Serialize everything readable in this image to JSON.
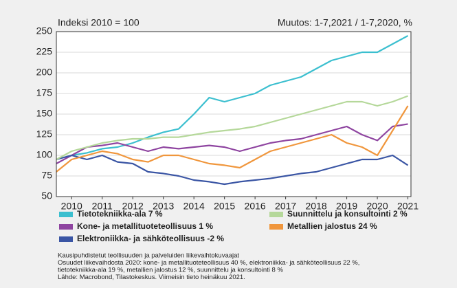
{
  "chart_data": {
    "type": "line",
    "subtitle_left": "Indeksi 2010 = 100",
    "subtitle_right": "Muutos: 1-7,2021 / 1-7,2020, %",
    "x": [
      2010.0,
      2010.5,
      2011.0,
      2011.5,
      2012.0,
      2012.5,
      2013.0,
      2013.5,
      2014.0,
      2014.5,
      2015.0,
      2015.5,
      2016.0,
      2016.5,
      2017.0,
      2017.5,
      2018.0,
      2018.5,
      2019.0,
      2019.5,
      2020.0,
      2020.5,
      2021.0,
      2021.5
    ],
    "series": [
      {
        "name": "Tietotekniikka-ala 7 %",
        "color": "#3bbfcf",
        "values": [
          95,
          100,
          103,
          108,
          110,
          115,
          122,
          128,
          132,
          150,
          170,
          165,
          170,
          175,
          185,
          190,
          195,
          205,
          215,
          220,
          225,
          225,
          235,
          245
        ]
      },
      {
        "name": "Kone- ja metallituoteteollisuus 1 %",
        "color": "#8e44a0",
        "values": [
          90,
          100,
          110,
          112,
          115,
          110,
          105,
          110,
          108,
          110,
          112,
          110,
          105,
          110,
          115,
          118,
          120,
          125,
          130,
          135,
          125,
          118,
          135,
          138
        ]
      },
      {
        "name": "Elektroniikka- ja sähköteollisuus -2 %",
        "color": "#3a55a4",
        "values": [
          95,
          100,
          95,
          100,
          92,
          90,
          80,
          78,
          75,
          70,
          68,
          65,
          68,
          70,
          72,
          75,
          78,
          80,
          85,
          90,
          95,
          95,
          100,
          88
        ]
      },
      {
        "name": "Suunnittelu ja konsultointi 2 %",
        "color": "#b5d89a",
        "values": [
          95,
          105,
          110,
          115,
          118,
          120,
          120,
          122,
          122,
          125,
          128,
          130,
          132,
          135,
          140,
          145,
          150,
          155,
          160,
          165,
          165,
          160,
          165,
          172
        ]
      },
      {
        "name": "Metallien jalostus 24 %",
        "color": "#f0963c",
        "values": [
          80,
          95,
          100,
          105,
          102,
          95,
          92,
          100,
          100,
          95,
          90,
          88,
          85,
          95,
          105,
          110,
          115,
          120,
          125,
          115,
          110,
          100,
          130,
          160
        ]
      }
    ],
    "xlim": [
      2010,
      2021.6
    ],
    "xticks": [
      {
        "value": 2010.5,
        "label": "2010"
      },
      {
        "value": 2011.5,
        "label": "2011"
      },
      {
        "value": 2012.5,
        "label": "2012"
      },
      {
        "value": 2013.5,
        "label": "2013"
      },
      {
        "value": 2014.5,
        "label": "2014"
      },
      {
        "value": 2015.5,
        "label": "2015"
      },
      {
        "value": 2016.5,
        "label": "2016"
      },
      {
        "value": 2017.5,
        "label": "2017"
      },
      {
        "value": 2018.5,
        "label": "2018"
      },
      {
        "value": 2019.5,
        "label": "2019"
      },
      {
        "value": 2020.5,
        "label": "2020"
      },
      {
        "value": 2021.5,
        "label": "2021"
      }
    ],
    "ylim": [
      50,
      250
    ],
    "yticks": [
      50,
      75,
      100,
      125,
      150,
      175,
      200,
      225,
      250
    ],
    "grid": true,
    "notes": [
      "Kausipuhdistetut teollisuuden ja palveluiden liikevaihtokuvaajat",
      "Osuudet liikevaihdosta 2020: kone- ja metallituoteteollisuus 40 %, elektroniikka- ja sähköteollisuus 22 %,",
      "tietotekniikka-ala 19 %, metallien jalostus 12 %, suunnittelu ja konsultointi 8 %",
      "Lähde: Macrobond, Tilastokeskus. Viimeisin tieto heinäkuu 2021."
    ]
  }
}
